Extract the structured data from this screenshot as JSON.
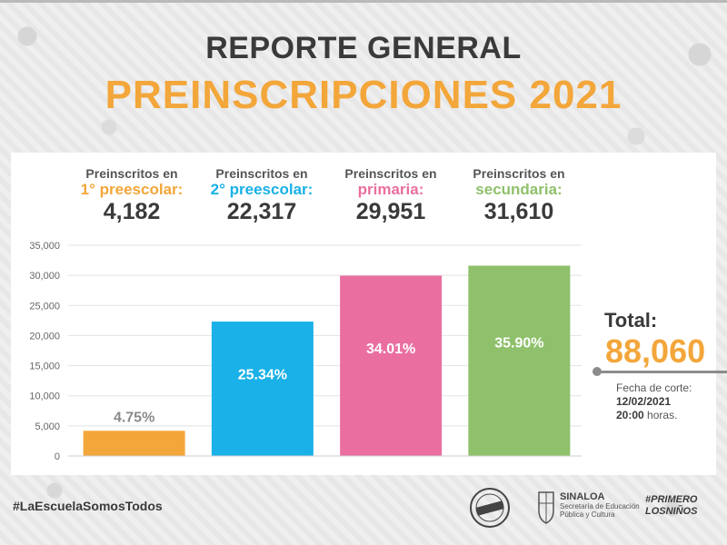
{
  "header": {
    "title": "REPORTE GENERAL",
    "subtitle": "PREINSCRIPCIONES 2021"
  },
  "stats": [
    {
      "label": "Preinscritos en",
      "category": "1° preescolar:",
      "value": "4,182",
      "color": "#f3a63a"
    },
    {
      "label": "Preinscritos en",
      "category": "2° preescolar:",
      "value": "22,317",
      "color": "#19b1e7"
    },
    {
      "label": "Preinscritos en",
      "category": "primaria:",
      "value": "29,951",
      "color": "#ea6fa0"
    },
    {
      "label": "Preinscritos en",
      "category": "secundaria:",
      "value": "31,610",
      "color": "#8fc06b"
    }
  ],
  "total": {
    "label": "Total:",
    "value": "88,060",
    "cutoff_label": "Fecha de corte:",
    "cutoff_date": "12/02/2021",
    "cutoff_time": "20:00",
    "cutoff_suffix": "horas."
  },
  "footer": {
    "hashtag": "#LaEscuelaSomosTodos",
    "sinaloa_title": "SINALOA",
    "sinaloa_sub": "Secretaría de Educación Pública y Cultura",
    "primero_line1": "#PRIMERO",
    "primero_line2": "LOSNIÑOS"
  },
  "chart_data": {
    "type": "bar",
    "categories": [
      "1° preescolar",
      "2° preescolar",
      "primaria",
      "secundaria"
    ],
    "values": [
      4182,
      22317,
      29951,
      31610
    ],
    "data_labels": [
      "4.75%",
      "25.34%",
      "34.01%",
      "35.90%"
    ],
    "colors": [
      "#f3a63a",
      "#19b1e7",
      "#ea6fa0",
      "#8fc06b"
    ],
    "ylim": [
      0,
      35000
    ],
    "yticks": [
      0,
      5000,
      10000,
      15000,
      20000,
      25000,
      30000,
      35000
    ],
    "ytick_labels": [
      "0",
      "5,000",
      "10,000",
      "15,000",
      "20,000",
      "25,000",
      "30,000",
      "35,000"
    ],
    "grid": true,
    "legend": "none"
  }
}
